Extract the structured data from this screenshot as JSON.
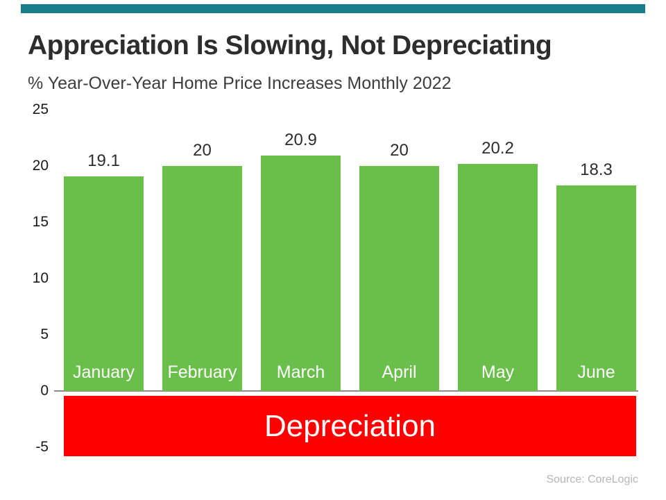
{
  "page": {
    "title": "Appreciation Is Slowing, Not Depreciating",
    "subtitle": "% Year-Over-Year Home Price Increases Monthly 2022",
    "source": "Source: CoreLogic"
  },
  "chart_data": {
    "type": "bar",
    "categories": [
      "January",
      "February",
      "March",
      "April",
      "May",
      "June"
    ],
    "values": [
      19.1,
      20,
      20.9,
      20,
      20.2,
      18.3
    ],
    "value_labels": [
      "19.1",
      "20",
      "20.9",
      "20",
      "20.2",
      "18.3"
    ],
    "title": "Appreciation Is Slowing, Not Depreciating",
    "subtitle": "% Year-Over-Year Home Price Increases Monthly 2022",
    "xlabel": "",
    "ylabel": "",
    "ylim": [
      -5,
      25
    ],
    "yticks": [
      25,
      20,
      15,
      10,
      5,
      0,
      -5
    ],
    "grid": false,
    "legend": false,
    "bar_color": "#6abf4b",
    "annotation": "Depreciation",
    "annotation_color": "#fe0000",
    "accent_bar_color": "#1b7c8e",
    "source": "Source: CoreLogic"
  }
}
